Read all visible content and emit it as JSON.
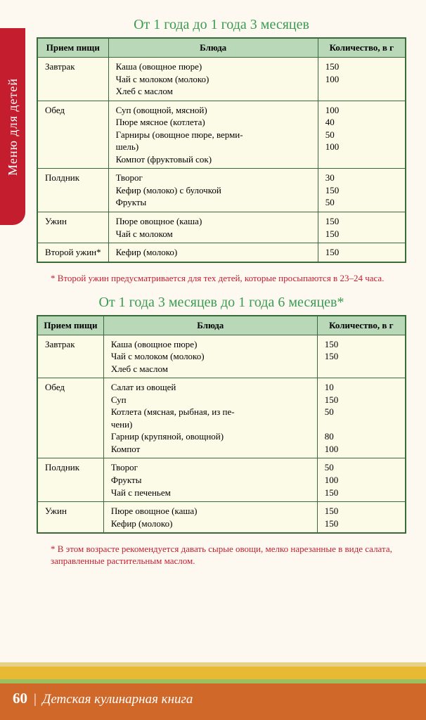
{
  "sideTab": "Меню для детей",
  "section1": {
    "title": "От 1 года до 1 года 3 месяцев",
    "headers": {
      "meal": "Прием пищи",
      "dishes": "Блюда",
      "qty": "Количество, в г"
    },
    "rows": [
      {
        "meal": "Завтрак",
        "dishes": "Каша (овощное пюре)\nЧай с молоком (молоко)\nХлеб с маслом",
        "qty": "150\n100"
      },
      {
        "meal": "Обед",
        "dishes": "Суп (овощной, мясной)\nПюре мясное (котлета)\nГарниры (овощное пюре, верми-\nшель)\nКомпот (фруктовый сок)",
        "qty": "100\n40\n50\n100"
      },
      {
        "meal": "Полдник",
        "dishes": "Творог\nКефир (молоко) с булочкой\nФрукты",
        "qty": "30\n150\n50"
      },
      {
        "meal": "Ужин",
        "dishes": "Пюре овощное (каша)\nЧай с молоком",
        "qty": "150\n150"
      },
      {
        "meal": "Второй ужин*",
        "dishes": "Кефир (молоко)",
        "qty": "150"
      }
    ],
    "footnote": "* Второй ужин предусматривается для тех детей, которые просыпаются в 23–24 часа."
  },
  "section2": {
    "title": "От 1 года 3 месяцев до 1 года 6 месяцев*",
    "headers": {
      "meal": "Прием пищи",
      "dishes": "Блюда",
      "qty": "Количество, в г"
    },
    "rows": [
      {
        "meal": "Завтрак",
        "dishes": "Каша (овощное пюре)\nЧай с молоком (молоко)\nХлеб с маслом",
        "qty": "150\n150"
      },
      {
        "meal": "Обед",
        "dishes": "Салат из овощей\nСуп\nКотлета (мясная, рыбная, из пе-\nчени)\nГарнир (крупяной, овощной)\nКомпот",
        "qty": "10\n150\n50\n\n80\n100"
      },
      {
        "meal": "Полдник",
        "dishes": "Творог\nФрукты\nЧай с печеньем",
        "qty": "50\n100\n150"
      },
      {
        "meal": "Ужин",
        "dishes": "Пюре овощное (каша)\nКефир (молоко)",
        "qty": "150\n150"
      }
    ],
    "footnote": "* В этом возрасте рекомендуется давать сырые овощи, мелко нарезанные в виде салата, заправленные растительным маслом."
  },
  "footer": {
    "page": "60",
    "title": "Детская кулинарная книга"
  }
}
